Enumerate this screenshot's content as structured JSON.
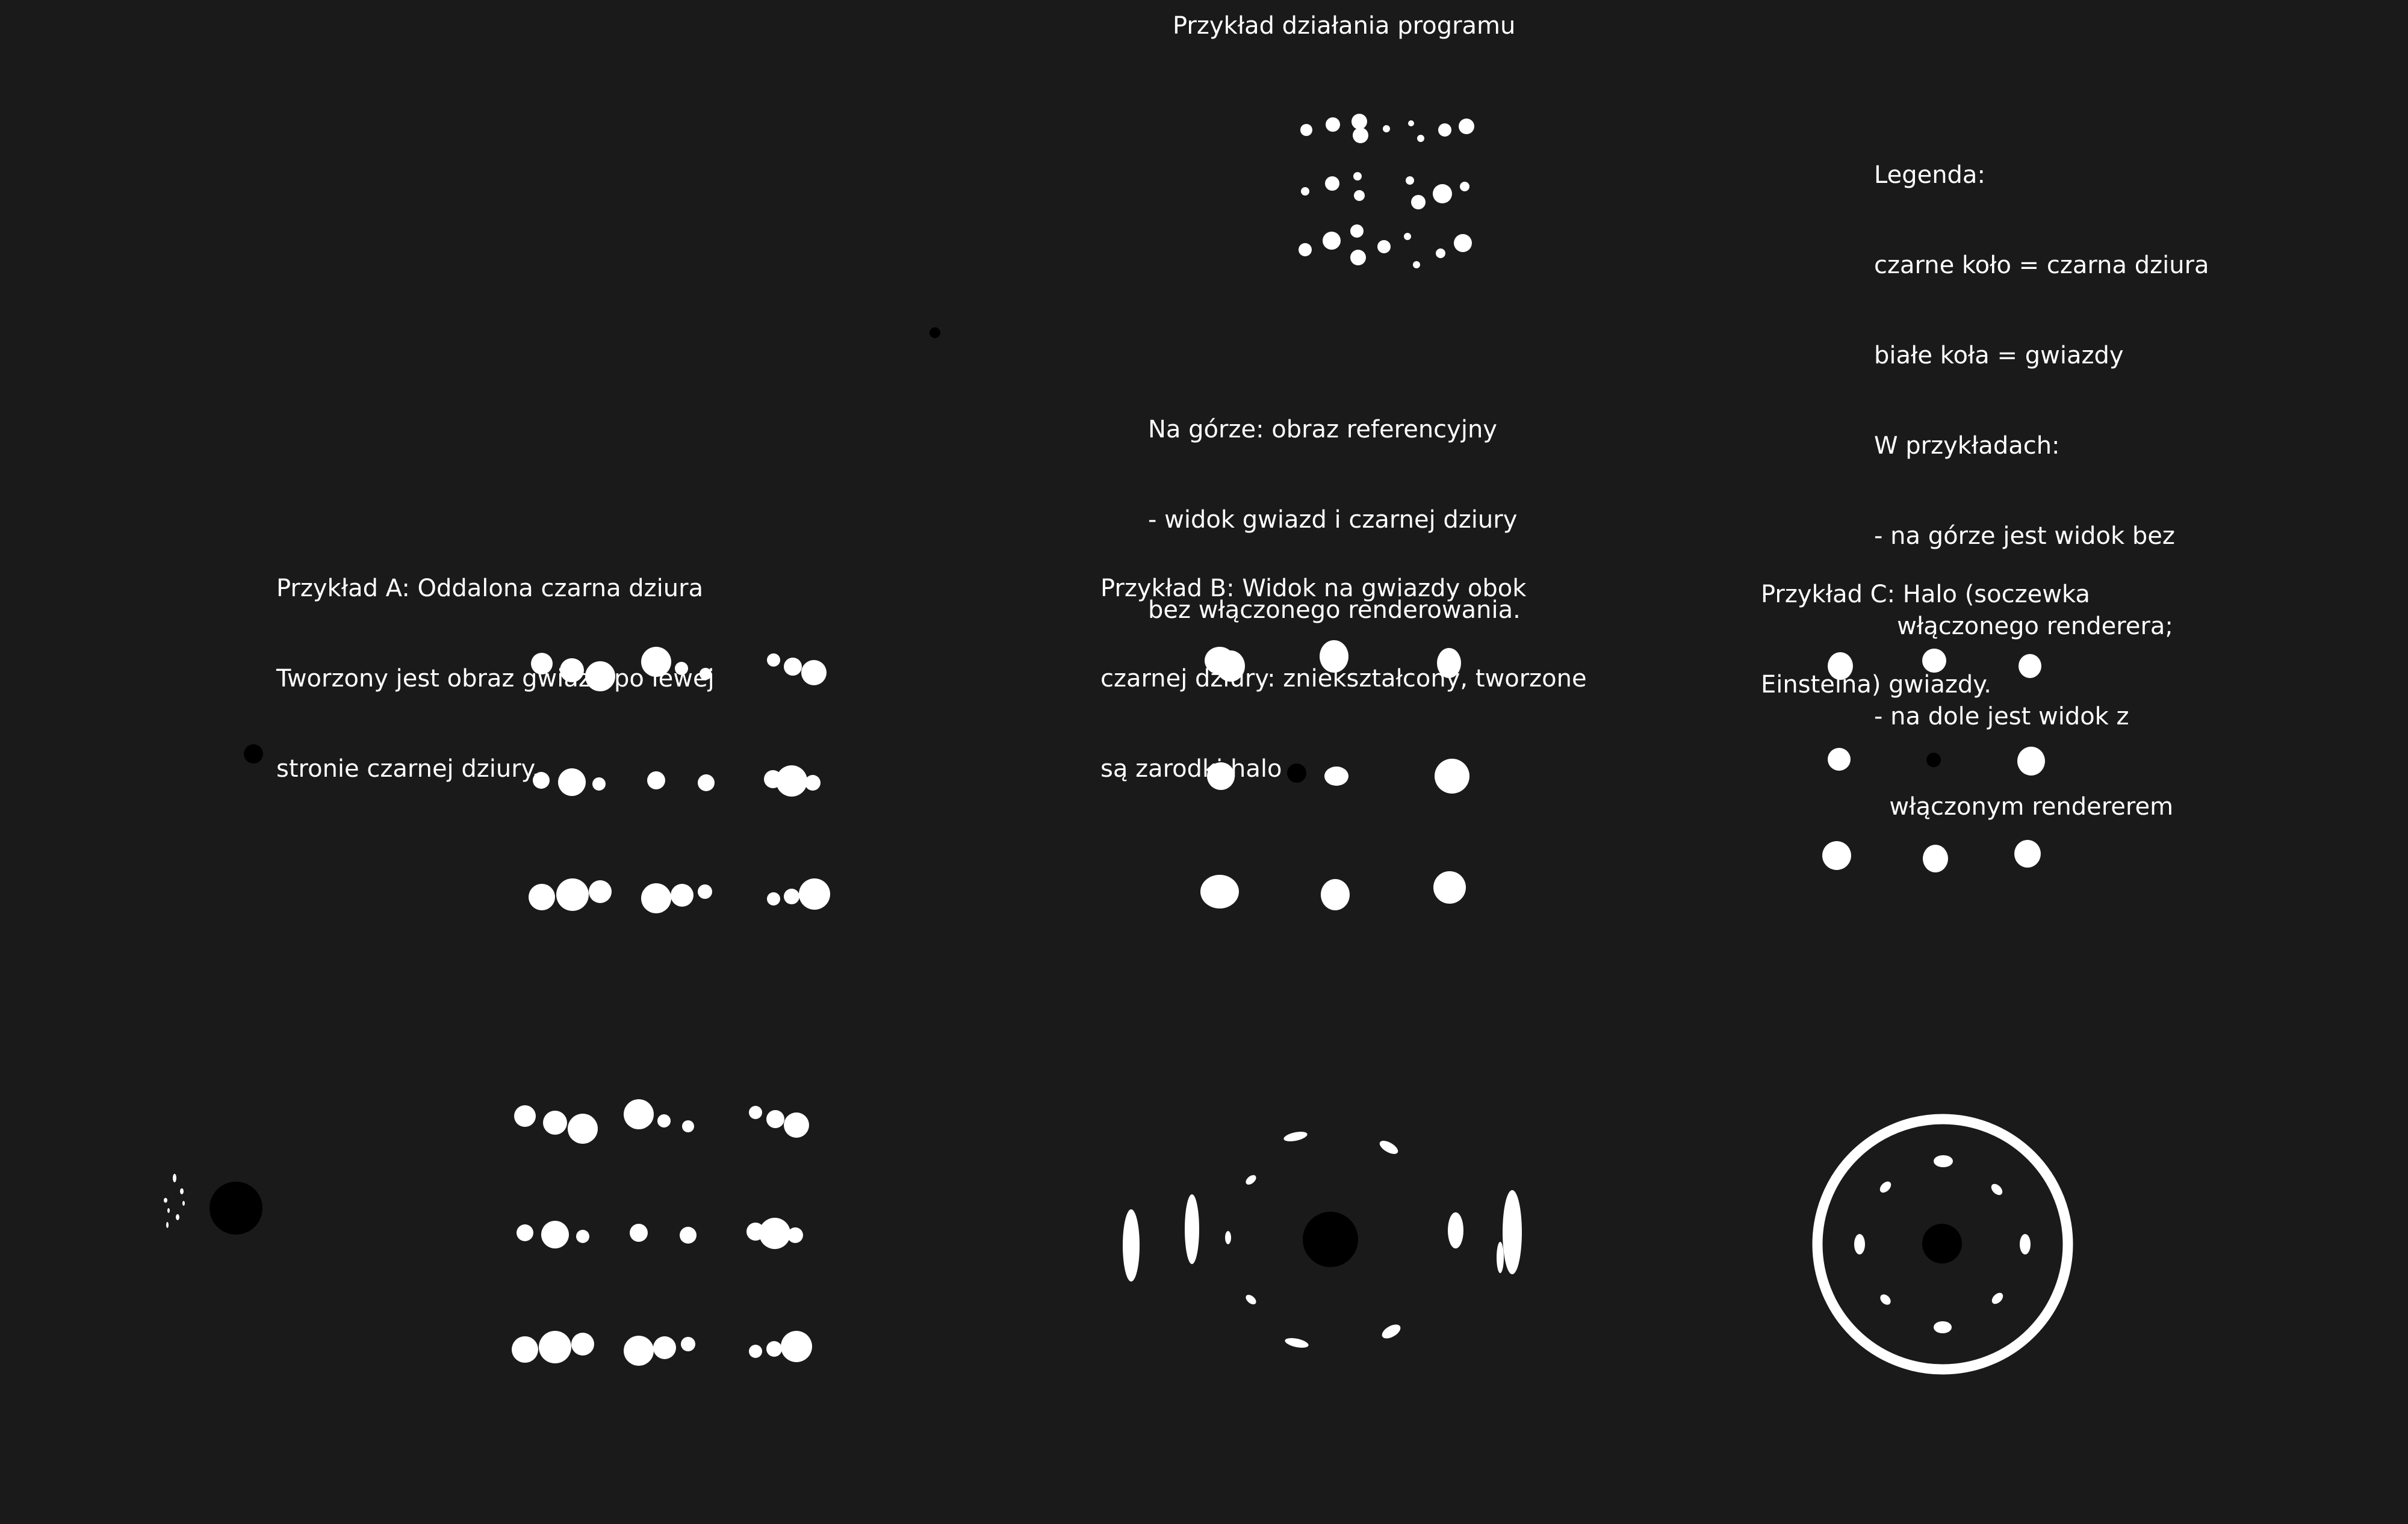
{
  "title": "Przykład działania programu",
  "reference_caption": [
    "Na górze: obraz referencyjny",
    "- widok gwiazd i czarnej dziury",
    "bez włączonego renderowania."
  ],
  "legend": [
    "Legenda:",
    "czarne koło = czarna dziura",
    "białe koła = gwiazdy",
    "W przykładach:",
    "- na górze jest widok bez",
    "   włączonego renderera;",
    "- na dole jest widok z",
    "  włączonym rendererem"
  ],
  "examples": {
    "a": [
      "Przykład A: Oddalona czarna dziura",
      "Tworzony jest obraz gwiazd po lewej",
      "stronie czarnej dziury."
    ],
    "b": [
      "Przykład B: Widok na gwiazdy obok",
      "czarnej dziury: zniekształcony, tworzone",
      "są zarodki halo"
    ],
    "c": [
      "Przykład C: Halo (soczewka",
      "Einsteina) gwiazdy."
    ]
  },
  "colors": {
    "background": "#1a1a1a",
    "star": "#ffffff",
    "black_hole": "#000000"
  }
}
